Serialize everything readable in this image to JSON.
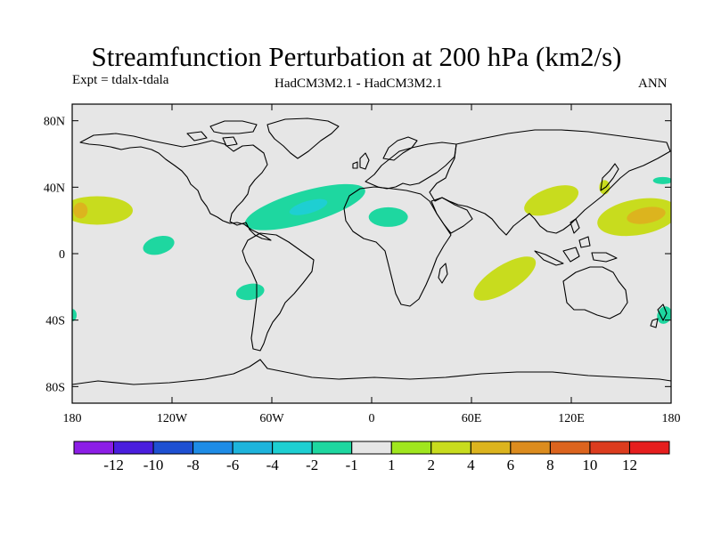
{
  "title": "Streamfunction Perturbation at 200 hPa (km2/s)",
  "expt": "Expt = tdalx-tdala",
  "model": "HadCM3M2.1 - HadCM3M2.1",
  "season": "ANN",
  "map": {
    "background_color": "#e6e6e6",
    "coastline_color": "#000000",
    "x_ticks": [
      "180",
      "120W",
      "60W",
      "0",
      "60E",
      "120E",
      "180"
    ],
    "y_ticks": [
      "80N",
      "40N",
      "0",
      "40S",
      "80S"
    ],
    "anomalies": [
      {
        "name": "north-atlantic-negative",
        "category": "-2",
        "lon": -40,
        "lat": 28,
        "inner_category": "-4",
        "inner_lon": -38,
        "inner_lat": 28
      },
      {
        "name": "north-africa-negative",
        "category": "-2",
        "lon": 10,
        "lat": 22
      },
      {
        "name": "central-pacific-negative",
        "category": "-2",
        "lon": -128,
        "lat": 5
      },
      {
        "name": "south-america-negative",
        "category": "-2",
        "lon": -73,
        "lat": -23
      },
      {
        "name": "southwest-pacific-negative",
        "category": "-2",
        "lon": 176,
        "lat": -37
      },
      {
        "name": "dateline-edge-negative",
        "category": "-2",
        "lon": -180,
        "lat": -37
      },
      {
        "name": "east-china-positive",
        "category": "2",
        "lon": 108,
        "lat": 32
      },
      {
        "name": "indian-ocean-positive",
        "category": "2",
        "lon": 80,
        "lat": -15
      },
      {
        "name": "west-pacific-positive",
        "category": "2",
        "lon": 160,
        "lat": 22,
        "inner_category": "4",
        "inner_lon": 165,
        "inner_lat": 23
      },
      {
        "name": "east-pacific-positive",
        "category": "2",
        "lon": -165,
        "lat": 26,
        "inner_category": "4",
        "inner_lon": -175,
        "inner_lat": 26
      },
      {
        "name": "japan-positive",
        "category": "2",
        "lon": 140,
        "lat": 40
      },
      {
        "name": "northwest-pacific-negative",
        "category": "-2",
        "lon": 175,
        "lat": 44
      }
    ]
  },
  "colorbar": {
    "colors": [
      "#8c1ee6",
      "#4a1ede",
      "#1e50d2",
      "#1e8ce6",
      "#1eb4dc",
      "#1ecfd2",
      "#1ed7a0",
      "#e6e6e6",
      "#a0e61e",
      "#c8dc1e",
      "#dcb41e",
      "#dc8c1e",
      "#dc641e",
      "#dc3c1e",
      "#e61e1e"
    ],
    "categories": [
      "-14",
      "-12",
      "-10",
      "-8",
      "-6",
      "-4",
      "-2",
      "-1",
      "1",
      "2",
      "4",
      "6",
      "8",
      "10",
      "12"
    ],
    "labels": [
      "-12",
      "-10",
      "-8",
      "-6",
      "-4",
      "-2",
      "-1",
      "1",
      "2",
      "4",
      "6",
      "8",
      "10",
      "12"
    ]
  }
}
